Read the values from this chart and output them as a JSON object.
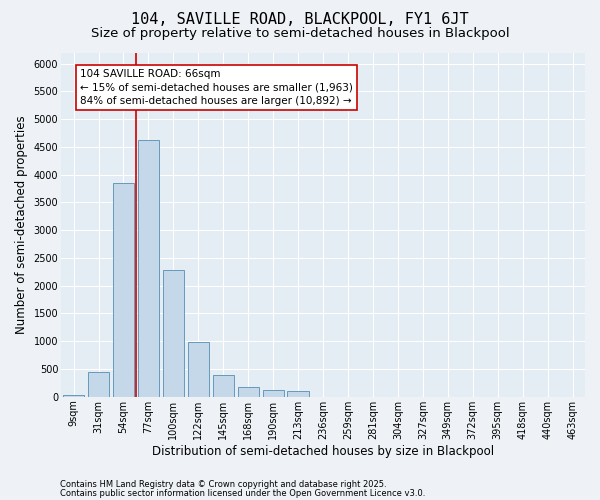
{
  "title": "104, SAVILLE ROAD, BLACKPOOL, FY1 6JT",
  "subtitle": "Size of property relative to semi-detached houses in Blackpool",
  "xlabel": "Distribution of semi-detached houses by size in Blackpool",
  "ylabel": "Number of semi-detached properties",
  "categories": [
    "9sqm",
    "31sqm",
    "54sqm",
    "77sqm",
    "100sqm",
    "122sqm",
    "145sqm",
    "168sqm",
    "190sqm",
    "213sqm",
    "236sqm",
    "259sqm",
    "281sqm",
    "304sqm",
    "327sqm",
    "349sqm",
    "372sqm",
    "395sqm",
    "418sqm",
    "440sqm",
    "463sqm"
  ],
  "values": [
    30,
    440,
    3850,
    4620,
    2280,
    980,
    400,
    180,
    130,
    110,
    0,
    0,
    0,
    0,
    0,
    0,
    0,
    0,
    0,
    0,
    0
  ],
  "bar_color": "#c5d8ea",
  "bar_edge_color": "#6699bb",
  "vline_pos": 2.5,
  "vline_color": "#cc0000",
  "annotation_text": "104 SAVILLE ROAD: 66sqm\n← 15% of semi-detached houses are smaller (1,963)\n84% of semi-detached houses are larger (10,892) →",
  "annotation_box_color": "#ffffff",
  "annotation_box_edge": "#cc0000",
  "ylim": [
    0,
    6200
  ],
  "yticks": [
    0,
    500,
    1000,
    1500,
    2000,
    2500,
    3000,
    3500,
    4000,
    4500,
    5000,
    5500,
    6000
  ],
  "footer1": "Contains HM Land Registry data © Crown copyright and database right 2025.",
  "footer2": "Contains public sector information licensed under the Open Government Licence v3.0.",
  "bg_color": "#eef2f6",
  "plot_bg_color": "#e4ecf4",
  "title_fontsize": 11,
  "subtitle_fontsize": 9.5,
  "tick_fontsize": 7,
  "label_fontsize": 8.5,
  "footer_fontsize": 6,
  "annot_fontsize": 7.5
}
